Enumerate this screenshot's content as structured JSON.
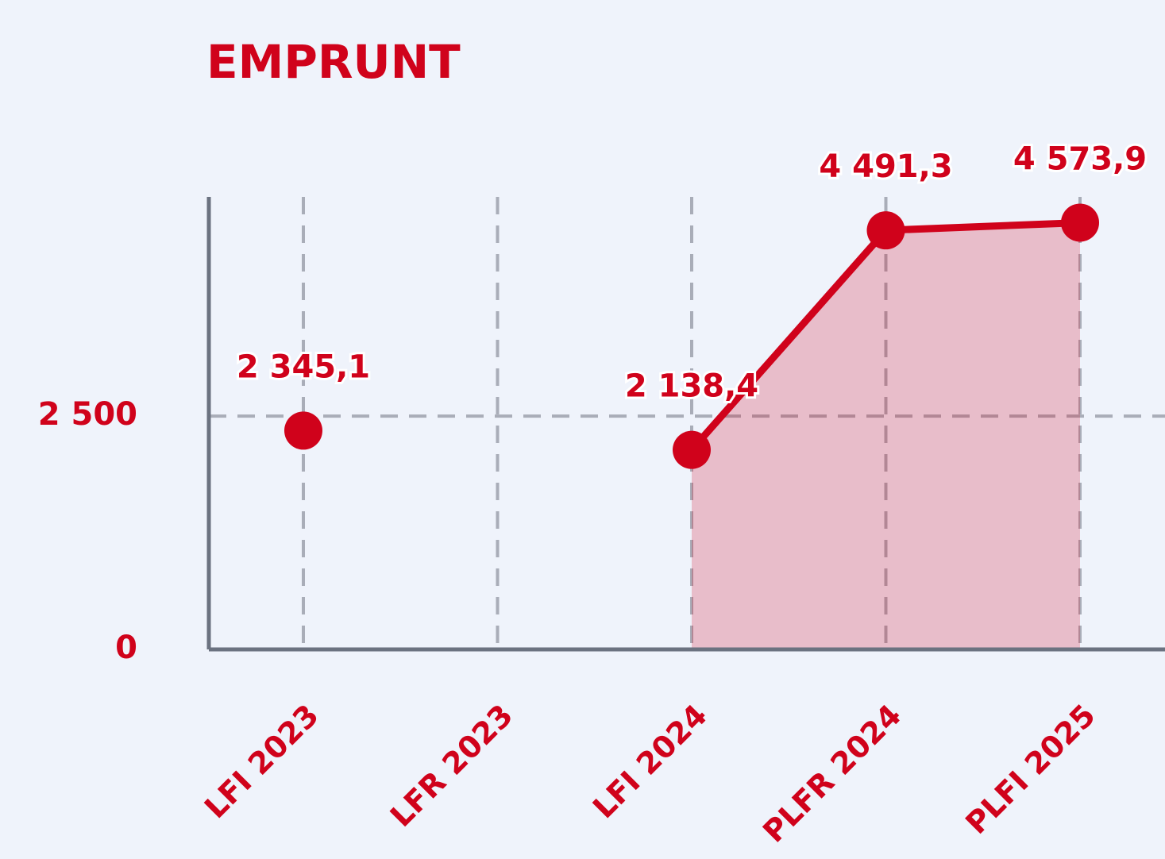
{
  "chart_data": {
    "type": "line",
    "title": "EMPRUNT",
    "categories": [
      "LFI 2023",
      "LFR 2023",
      "LFI 2024",
      "PLFR 2024",
      "PLFI 2025"
    ],
    "series": [
      {
        "color": "#d0021b",
        "values": [
          2345.1,
          null,
          2138.4,
          4491.3,
          4573.9
        ],
        "value_labels": [
          "2 345,1",
          null,
          "2 138,4",
          "4 491,3",
          "4 573,9"
        ]
      }
    ],
    "ylim": [
      0,
      4850
    ],
    "yticks": [
      0,
      {
        "value": 2500,
        "label": "2 500"
      }
    ],
    "grid": true
  }
}
